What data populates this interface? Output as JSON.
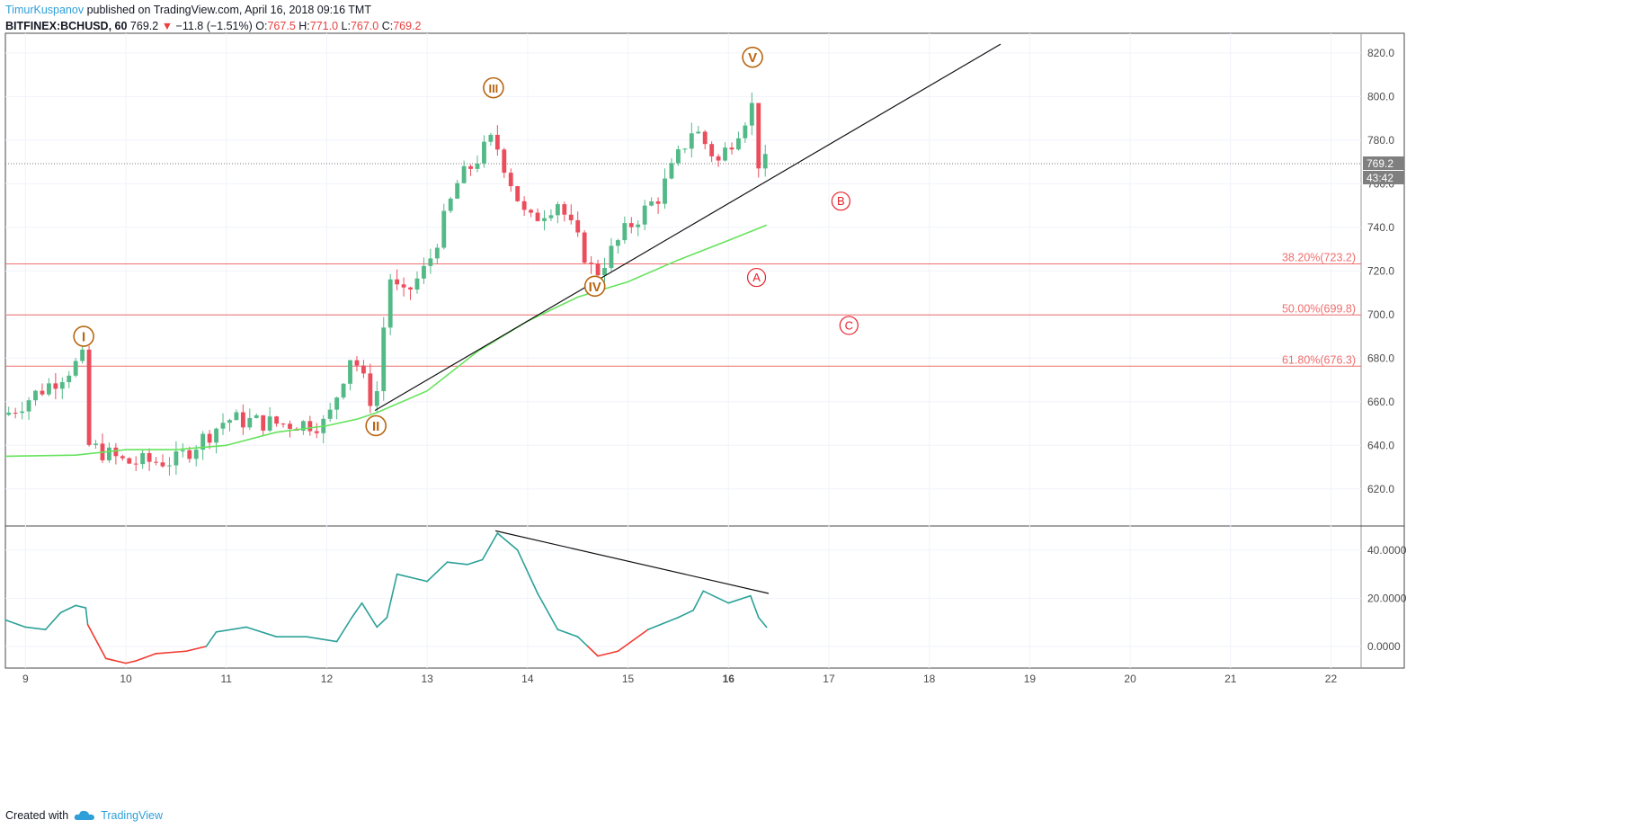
{
  "header": {
    "author": "TimurKuspanov",
    "published": "published on TradingView.com, April 16, 2018 09:16 TMT",
    "symbol": "BITFINEX:BCHUSD, 60",
    "last": "769.2",
    "change": "−11.8 (−1.51%)",
    "open_label": "O:",
    "open": "767.5",
    "high_label": "H:",
    "high": "771.0",
    "low_label": "L:",
    "low": "767.0",
    "close_label": "C:",
    "close": "769.2"
  },
  "footer": {
    "created_with": "Created with",
    "brand": "TradingView",
    "logo_icon": "tradingview-cloud-icon"
  },
  "colors": {
    "up": "#53b987",
    "down": "#eb4d5c",
    "ma": "#66e35c",
    "fib": "#ef6e6e",
    "wave": "#b8650f",
    "abc": "#e8202a",
    "osc_up": "#2aa198",
    "osc_down": "#f23a2f"
  },
  "chart_data": {
    "type": "candlestick",
    "price_axis": {
      "ylim": [
        603,
        829
      ],
      "ticks": [
        "620.0",
        "640.0",
        "660.0",
        "680.0",
        "700.0",
        "720.0",
        "740.0",
        "760.0",
        "780.0",
        "800.0",
        "820.0"
      ],
      "tick_values": [
        620,
        640,
        660,
        680,
        700,
        720,
        740,
        760,
        780,
        800,
        820
      ]
    },
    "x_axis": {
      "ticks": [
        "9",
        "10",
        "11",
        "12",
        "13",
        "14",
        "15",
        "16",
        "17",
        "18",
        "19",
        "20",
        "21",
        "22"
      ],
      "tick_days": [
        9,
        10,
        11,
        12,
        13,
        14,
        15,
        16,
        17,
        18,
        19,
        20,
        21,
        22
      ],
      "xlim_days": [
        8.8,
        22.3
      ],
      "bold_tick": "16"
    },
    "last_price_label": "769.2",
    "countdown_label": "43:42",
    "last_price": 769.2,
    "fib_levels": [
      {
        "label": "38.20%(723.2)",
        "value": 723.2
      },
      {
        "label": "50.00%(699.8)",
        "value": 699.8
      },
      {
        "label": "61.80%(676.3)",
        "value": 676.3
      }
    ],
    "waves": [
      {
        "label": "I",
        "day": 9.58,
        "price": 690
      },
      {
        "label": "II",
        "day": 12.49,
        "price": 649
      },
      {
        "label": "III",
        "day": 13.66,
        "price": 804
      },
      {
        "label": "IV",
        "day": 14.67,
        "price": 713
      },
      {
        "label": "V",
        "day": 16.24,
        "price": 818
      }
    ],
    "abc": [
      {
        "label": "A",
        "day": 16.28,
        "price": 717
      },
      {
        "label": "B",
        "day": 17.12,
        "price": 752
      },
      {
        "label": "C",
        "day": 17.2,
        "price": 695
      }
    ],
    "trendline": {
      "from": {
        "day": 12.48,
        "price": 656
      },
      "to": {
        "day": 18.71,
        "price": 824
      }
    },
    "anchors_day": [
      8.8,
      9.3,
      9.58,
      9.62,
      10.0,
      10.5,
      11.0,
      11.5,
      12.0,
      12.25,
      12.48,
      12.62,
      12.75,
      13.0,
      13.3,
      13.66,
      14.0,
      14.3,
      14.67,
      15.0,
      15.3,
      15.65,
      15.9,
      16.24,
      16.3,
      16.38
    ],
    "anchors_price": [
      654,
      670,
      680,
      640,
      632,
      633,
      652,
      650,
      650,
      683,
      656,
      718,
      707,
      722,
      760,
      781,
      742,
      752,
      718,
      740,
      754,
      786,
      770,
      796,
      770,
      769
    ],
    "ma_days": [
      8.8,
      9.5,
      10.0,
      10.5,
      11.0,
      11.5,
      12.0,
      12.3,
      12.5,
      13.0,
      13.5,
      14.0,
      14.5,
      15.0,
      15.5,
      16.0,
      16.38
    ],
    "ma_values": [
      635,
      635.5,
      638,
      638,
      640,
      646,
      649,
      652,
      655,
      665,
      683,
      697,
      708,
      715,
      725,
      734,
      741
    ],
    "oscillator": {
      "ylim": [
        -9,
        50
      ],
      "ticks": [
        "40.0000",
        "20.0000",
        "0.0000"
      ],
      "tick_values": [
        40,
        20,
        0
      ],
      "days": [
        8.8,
        9.0,
        9.2,
        9.35,
        9.5,
        9.6,
        9.62,
        9.8,
        10.0,
        10.1,
        10.3,
        10.6,
        10.8,
        10.9,
        11.2,
        11.5,
        11.8,
        12.1,
        12.25,
        12.35,
        12.5,
        12.6,
        12.7,
        13.0,
        13.2,
        13.4,
        13.55,
        13.7,
        13.9,
        14.1,
        14.3,
        14.5,
        14.6,
        14.7,
        14.9,
        15.2,
        15.5,
        15.65,
        15.75,
        16.0,
        16.22,
        16.3,
        16.38
      ],
      "values": [
        11,
        8,
        7,
        14,
        17,
        16,
        9,
        -5,
        -7,
        -6,
        -3,
        -2,
        0,
        6,
        8,
        4,
        4,
        2,
        12,
        18,
        8,
        12,
        30,
        27,
        35,
        34,
        36,
        47,
        40,
        22,
        7,
        4,
        0,
        -4,
        -2,
        7,
        12,
        15,
        23,
        18,
        21,
        12,
        8
      ],
      "divergence_line": {
        "from": {
          "day": 13.68,
          "value": 48
        },
        "to": {
          "day": 16.4,
          "value": 22
        }
      }
    }
  }
}
